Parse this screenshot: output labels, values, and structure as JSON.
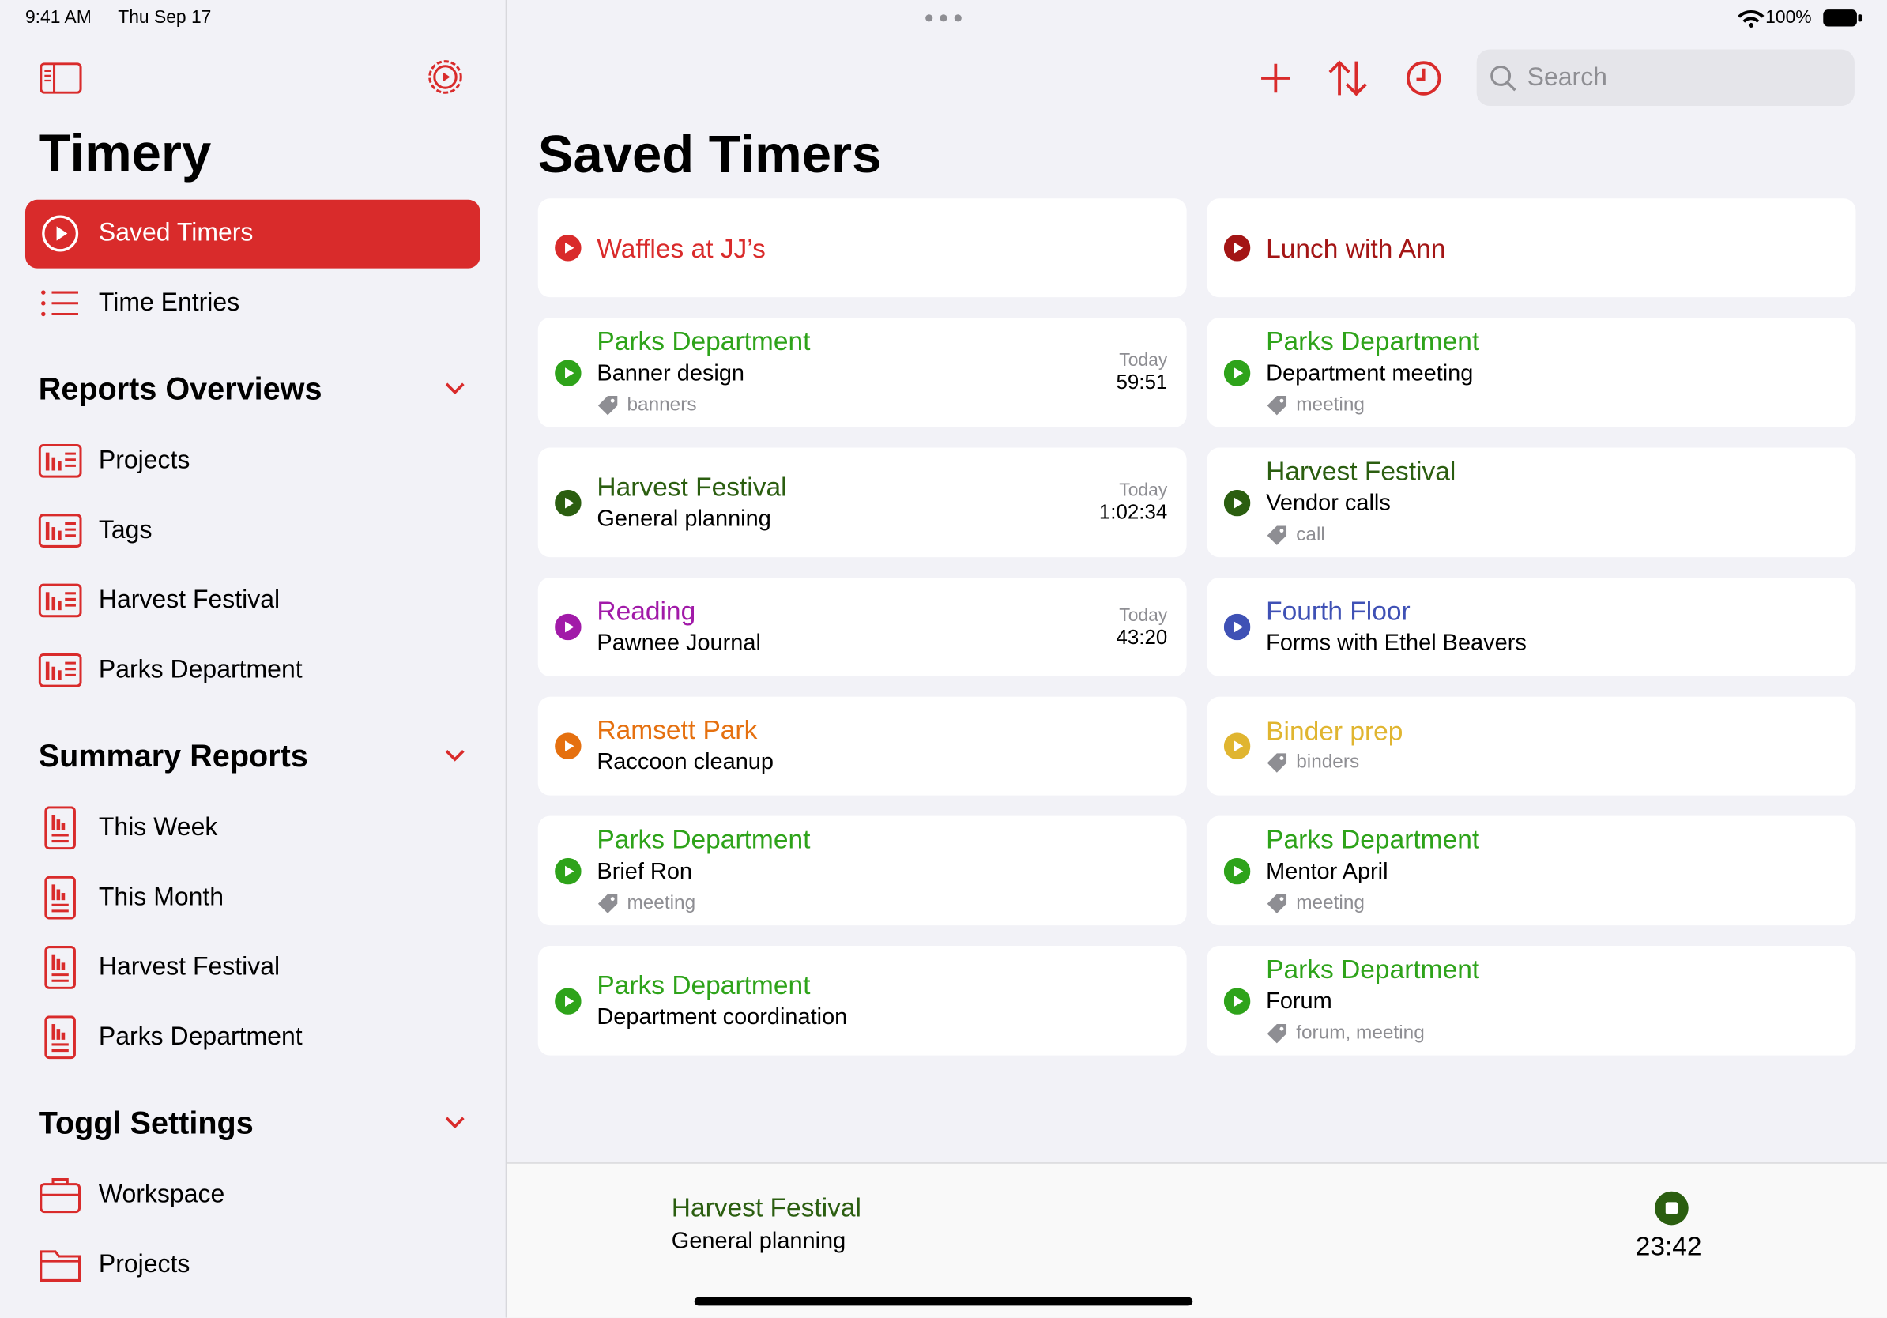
{
  "status_bar": {
    "time": "9:41 AM",
    "date": "Thu Sep 17",
    "battery": "100%"
  },
  "sidebar": {
    "title": "Timery",
    "nav": [
      "Saved Timers",
      "Time Entries"
    ],
    "sections": [
      {
        "title": "Reports Overviews",
        "items": [
          "Projects",
          "Tags",
          "Harvest Festival",
          "Parks Department"
        ]
      },
      {
        "title": "Summary Reports",
        "items": [
          "This Week",
          "This Month",
          "Harvest Festival",
          "Parks Department"
        ]
      },
      {
        "title": "Toggl Settings",
        "items": [
          "Workspace",
          "Projects"
        ]
      }
    ]
  },
  "header": {
    "title": "Saved Timers",
    "search_placeholder": "Search"
  },
  "timers": [
    {
      "project": "Waffles at JJ’s",
      "color": "#d92b2b"
    },
    {
      "project": "Lunch with Ann",
      "color": "#a31515"
    },
    {
      "project": "Parks Department",
      "color": "#2ea31a",
      "description": "Banner design",
      "tags": "banners",
      "last_run": "Today",
      "duration": "59:51"
    },
    {
      "project": "Parks Department",
      "color": "#2ea31a",
      "description": "Department meeting",
      "tags": "meeting"
    },
    {
      "project": "Harvest Festival",
      "color": "#2b5e10",
      "description": "General planning",
      "last_run": "Today",
      "duration": "1:02:34"
    },
    {
      "project": "Harvest Festival",
      "color": "#2b5e10",
      "description": "Vendor calls",
      "tags": "call"
    },
    {
      "project": "Reading",
      "color": "#a11aa8",
      "description": "Pawnee Journal",
      "last_run": "Today",
      "duration": "43:20"
    },
    {
      "project": "Fourth Floor",
      "color": "#3f51b5",
      "description": "Forms with Ethel Beavers"
    },
    {
      "project": "Ramsett Park",
      "color": "#e5700f",
      "description": "Raccoon cleanup"
    },
    {
      "project": "Binder prep",
      "color": "#e0b530",
      "tags": "binders"
    },
    {
      "project": "Parks Department",
      "color": "#2ea31a",
      "description": "Brief Ron",
      "tags": "meeting"
    },
    {
      "project": "Parks Department",
      "color": "#2ea31a",
      "description": "Mentor April",
      "tags": "meeting"
    },
    {
      "project": "Parks Department",
      "color": "#2ea31a",
      "description": "Department coordination"
    },
    {
      "project": "Parks Department",
      "color": "#2ea31a",
      "description": "Forum",
      "tags": "forum, meeting"
    }
  ],
  "running": {
    "project": "Harvest Festival",
    "color": "#2b5e10",
    "description": "General planning",
    "elapsed": "23:42"
  }
}
